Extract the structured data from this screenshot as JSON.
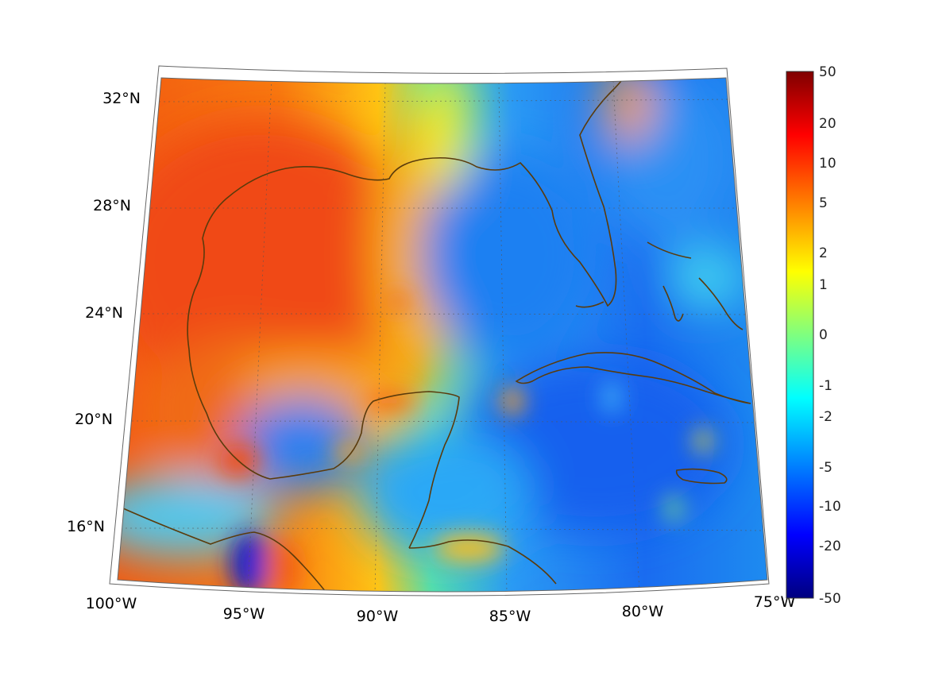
{
  "map": {
    "projection": "conic",
    "region": "Gulf of Mexico and Caribbean",
    "lon_ticks": [
      {
        "lon": -100,
        "label": "100°W"
      },
      {
        "lon": -95,
        "label": "95°W"
      },
      {
        "lon": -90,
        "label": "90°W"
      },
      {
        "lon": -85,
        "label": "85°W"
      },
      {
        "lon": -80,
        "label": "80°W"
      },
      {
        "lon": -75,
        "label": "75°W"
      }
    ],
    "lat_ticks": [
      {
        "lat": 32,
        "label": "32°N"
      },
      {
        "lat": 28,
        "label": "28°N"
      },
      {
        "lat": 24,
        "label": "24°N"
      },
      {
        "lat": 20,
        "label": "20°N"
      },
      {
        "lat": 16,
        "label": "16°N"
      }
    ],
    "grid": true,
    "coastline_color": "#5a3b0c",
    "field_description": "diverging field, high (red) over western Gulf, low (blue) over eastern Gulf and Caribbean"
  },
  "colorbar": {
    "colormap": "jet",
    "scale": "symmetric log",
    "ticks": [
      "50",
      "20",
      "10",
      "5",
      "2",
      "1",
      "0",
      "-1",
      "-2",
      "-5",
      "-10",
      "-20",
      "-50"
    ]
  }
}
